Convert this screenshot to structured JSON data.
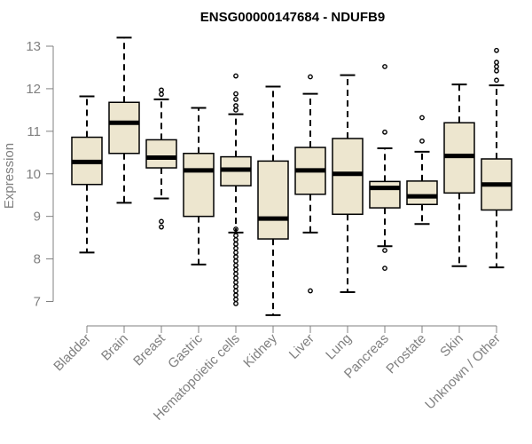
{
  "chart_data": {
    "type": "boxplot",
    "title": "ENSG00000147684 - NDUFB9",
    "xlabel": "",
    "ylabel": "Expression",
    "ylim": [
      6.7,
      13.2
    ],
    "yticks": [
      7,
      8,
      9,
      10,
      11,
      12,
      13
    ],
    "colors": {
      "box_fill": "#EDE6CF",
      "box_stroke": "#000000",
      "axis": "#808080"
    },
    "categories": [
      "Bladder",
      "Brain",
      "Breast",
      "Gastric",
      "Hematopoietic cells",
      "Kidney",
      "Liver",
      "Lung",
      "Pancreas",
      "Prostate",
      "Skin",
      "Unknown / Other"
    ],
    "series": [
      {
        "name": "Bladder",
        "whisker_low": 8.15,
        "q1": 9.75,
        "median": 10.28,
        "q3": 10.86,
        "whisker_high": 11.82,
        "outliers": []
      },
      {
        "name": "Brain",
        "whisker_low": 9.32,
        "q1": 10.48,
        "median": 11.2,
        "q3": 11.68,
        "whisker_high": 13.2,
        "outliers": []
      },
      {
        "name": "Breast",
        "whisker_low": 9.42,
        "q1": 10.14,
        "median": 10.38,
        "q3": 10.8,
        "whisker_high": 11.75,
        "outliers": [
          8.75,
          8.88,
          11.87,
          11.97
        ]
      },
      {
        "name": "Gastric",
        "whisker_low": 7.87,
        "q1": 9.0,
        "median": 10.08,
        "q3": 10.48,
        "whisker_high": 11.55,
        "outliers": []
      },
      {
        "name": "Hematopoietic cells",
        "whisker_low": 8.62,
        "q1": 9.72,
        "median": 10.1,
        "q3": 10.4,
        "whisker_high": 11.4,
        "outliers": [
          6.95,
          7.05,
          7.15,
          7.25,
          7.35,
          7.45,
          7.55,
          7.65,
          7.75,
          7.85,
          7.95,
          8.05,
          8.15,
          8.25,
          8.35,
          8.45,
          8.55,
          8.7,
          11.5,
          11.6,
          11.75,
          11.88,
          12.3
        ]
      },
      {
        "name": "Kidney",
        "whisker_low": 6.68,
        "q1": 8.47,
        "median": 8.95,
        "q3": 10.3,
        "whisker_high": 12.05,
        "outliers": []
      },
      {
        "name": "Liver",
        "whisker_low": 8.62,
        "q1": 9.52,
        "median": 10.08,
        "q3": 10.62,
        "whisker_high": 11.88,
        "outliers": [
          7.25,
          12.28
        ]
      },
      {
        "name": "Lung",
        "whisker_low": 7.22,
        "q1": 9.05,
        "median": 10.0,
        "q3": 10.83,
        "whisker_high": 12.32,
        "outliers": []
      },
      {
        "name": "Pancreas",
        "whisker_low": 8.3,
        "q1": 9.2,
        "median": 9.67,
        "q3": 9.82,
        "whisker_high": 10.6,
        "outliers": [
          7.78,
          8.2,
          10.98,
          12.52
        ]
      },
      {
        "name": "Prostate",
        "whisker_low": 8.82,
        "q1": 9.28,
        "median": 9.47,
        "q3": 9.83,
        "whisker_high": 10.52,
        "outliers": [
          10.77,
          11.32
        ]
      },
      {
        "name": "Skin",
        "whisker_low": 7.83,
        "q1": 9.55,
        "median": 10.42,
        "q3": 11.2,
        "whisker_high": 12.1,
        "outliers": []
      },
      {
        "name": "Unknown / Other",
        "whisker_low": 7.8,
        "q1": 9.15,
        "median": 9.75,
        "q3": 10.35,
        "whisker_high": 12.08,
        "outliers": [
          12.2,
          12.42,
          12.52,
          12.62,
          12.9
        ]
      }
    ]
  }
}
